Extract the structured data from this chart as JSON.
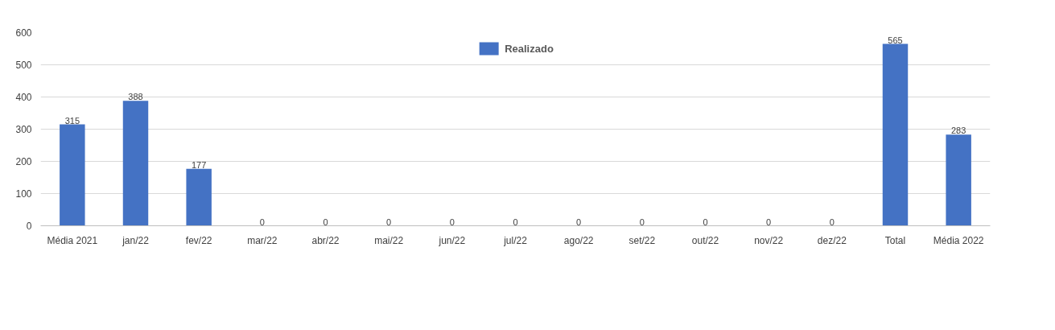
{
  "chart_data": {
    "type": "bar",
    "categories": [
      "Média 2021",
      "jan/22",
      "fev/22",
      "mar/22",
      "abr/22",
      "mai/22",
      "jun/22",
      "jul/22",
      "ago/22",
      "set/22",
      "out/22",
      "nov/22",
      "dez/22",
      "Total",
      "Média 2022"
    ],
    "series": [
      {
        "name": "Realizado",
        "color": "#4472c4",
        "values": [
          315,
          388,
          177,
          0,
          0,
          0,
          0,
          0,
          0,
          0,
          0,
          0,
          0,
          565,
          283
        ]
      }
    ],
    "ylim": [
      0,
      600
    ],
    "yticks": [
      0,
      100,
      200,
      300,
      400,
      500,
      600
    ],
    "grid": "y",
    "data_labels": true,
    "legend": "top"
  }
}
